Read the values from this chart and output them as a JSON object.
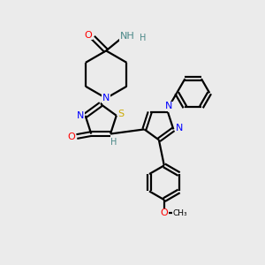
{
  "bg_color": "#ebebeb",
  "bond_color": "#000000",
  "atom_colors": {
    "N": "#0000ff",
    "O": "#ff0000",
    "S": "#ccaa00",
    "H": "#4a8888",
    "C": "#000000"
  },
  "figsize": [
    3.0,
    3.0
  ],
  "dpi": 100
}
